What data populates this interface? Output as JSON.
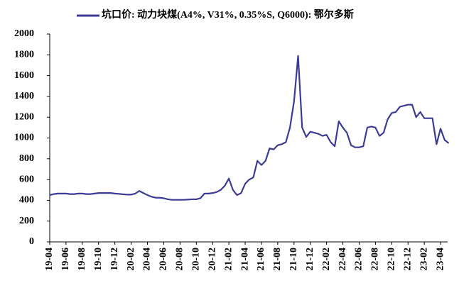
{
  "chart_data": {
    "type": "line",
    "categories": [
      "19-04",
      null,
      null,
      null,
      "19-06",
      null,
      null,
      null,
      "19-08",
      null,
      null,
      null,
      "19-10",
      null,
      null,
      null,
      "19-12",
      null,
      null,
      null,
      "20-02",
      null,
      null,
      null,
      "20-04",
      null,
      null,
      null,
      "20-06",
      null,
      null,
      null,
      "20-08",
      null,
      null,
      null,
      "20-10",
      null,
      null,
      null,
      "20-12",
      null,
      null,
      null,
      "21-02",
      null,
      null,
      null,
      "21-04",
      null,
      null,
      null,
      "21-06",
      null,
      null,
      null,
      "21-08",
      null,
      null,
      null,
      "21-10",
      null,
      null,
      null,
      "21-12",
      null,
      null,
      null,
      "22-02",
      null,
      null,
      null,
      "22-04",
      null,
      null,
      null,
      "22-06",
      null,
      null,
      null,
      "22-08",
      null,
      null,
      null,
      "22-10",
      null,
      null,
      null,
      "22-12",
      null,
      null,
      null,
      "23-02",
      null,
      null,
      null,
      "23-04",
      null,
      null
    ],
    "series": [
      {
        "name": "坑口价: 动力块煤(A4%, V31%, 0.35%S, Q6000): 鄂尔多斯",
        "color": "#3c3c96",
        "values": [
          450,
          460,
          465,
          465,
          465,
          460,
          460,
          465,
          465,
          460,
          460,
          465,
          470,
          470,
          470,
          470,
          465,
          462,
          458,
          455,
          455,
          465,
          490,
          470,
          450,
          435,
          425,
          425,
          420,
          410,
          405,
          405,
          405,
          405,
          408,
          410,
          410,
          420,
          465,
          465,
          470,
          480,
          500,
          540,
          610,
          500,
          450,
          470,
          560,
          600,
          620,
          780,
          740,
          780,
          900,
          890,
          930,
          940,
          960,
          1100,
          1350,
          1790,
          1100,
          1010,
          1060,
          1050,
          1040,
          1020,
          1030,
          960,
          920,
          1160,
          1100,
          1050,
          930,
          910,
          910,
          920,
          1100,
          1110,
          1100,
          1020,
          1050,
          1180,
          1240,
          1250,
          1300,
          1310,
          1320,
          1320,
          1200,
          1250,
          1190,
          1190,
          1190,
          940,
          1090,
          980,
          950
        ]
      }
    ],
    "ylim": [
      0,
      2000
    ],
    "yticks": [
      0,
      200,
      400,
      600,
      800,
      1000,
      1200,
      1400,
      1600,
      1800,
      2000
    ]
  }
}
